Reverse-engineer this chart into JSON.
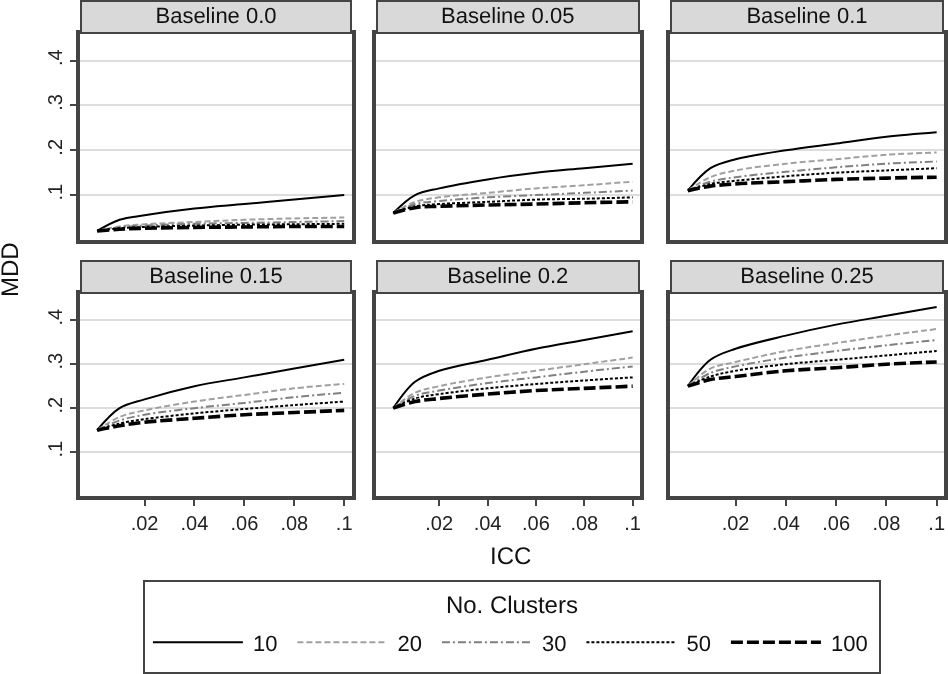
{
  "chart_data": [
    {
      "type": "line",
      "title": "Baseline 0.0",
      "ylabel": "MDD",
      "legend": "bottom",
      "legend_title": "No. Clusters",
      "grid": "y",
      "tick_labels": "y",
      "marker": "none",
      "x": [
        0.001,
        0.01,
        0.02,
        0.04,
        0.06,
        0.08,
        0.1
      ],
      "xlim": [
        -0.006,
        0.103
      ],
      "ylim": [
        0,
        0.46
      ],
      "yticks": [
        {
          "value": 0.1,
          "label": ".1"
        },
        {
          "value": 0.2,
          "label": ".2"
        },
        {
          "value": 0.3,
          "label": ".3"
        },
        {
          "value": 0.4,
          "label": ".4"
        }
      ],
      "series": [
        {
          "name": "10",
          "color": "#000000",
          "line_style": "solid",
          "values": [
            0.02,
            0.045,
            0.055,
            0.07,
            0.08,
            0.09,
            0.1
          ]
        },
        {
          "name": "20",
          "color": "#a0a0a0",
          "line_style": "dashed",
          "values": [
            0.02,
            0.03,
            0.035,
            0.04,
            0.045,
            0.048,
            0.05
          ]
        },
        {
          "name": "30",
          "color": "#808080",
          "line_style": "dashdot",
          "values": [
            0.02,
            0.028,
            0.032,
            0.036,
            0.038,
            0.04,
            0.042
          ]
        },
        {
          "name": "50",
          "color": "#000000",
          "line_style": "dotted",
          "values": [
            0.02,
            0.026,
            0.029,
            0.032,
            0.034,
            0.035,
            0.036
          ]
        },
        {
          "name": "100",
          "color": "#000000",
          "line_style": "longdash",
          "values": [
            0.02,
            0.024,
            0.026,
            0.028,
            0.029,
            0.03,
            0.03
          ]
        }
      ]
    },
    {
      "type": "line",
      "title": "Baseline 0.05",
      "grid": "y",
      "tick_labels": false,
      "marker": "none",
      "x": [
        0.001,
        0.01,
        0.02,
        0.04,
        0.06,
        0.08,
        0.1
      ],
      "xlim": [
        -0.006,
        0.103
      ],
      "ylim": [
        0,
        0.46
      ],
      "yticks": [
        0.1,
        0.2,
        0.3,
        0.4
      ],
      "series": [
        {
          "name": "10",
          "color": "#000000",
          "line_style": "solid",
          "values": [
            0.06,
            0.1,
            0.115,
            0.135,
            0.15,
            0.16,
            0.17
          ]
        },
        {
          "name": "20",
          "color": "#a0a0a0",
          "line_style": "dashed",
          "values": [
            0.06,
            0.085,
            0.095,
            0.105,
            0.115,
            0.122,
            0.13
          ]
        },
        {
          "name": "30",
          "color": "#808080",
          "line_style": "dashdot",
          "values": [
            0.06,
            0.08,
            0.087,
            0.095,
            0.1,
            0.105,
            0.11
          ]
        },
        {
          "name": "50",
          "color": "#000000",
          "line_style": "dotted",
          "values": [
            0.06,
            0.075,
            0.08,
            0.085,
            0.09,
            0.092,
            0.095
          ]
        },
        {
          "name": "100",
          "color": "#000000",
          "line_style": "longdash",
          "values": [
            0.06,
            0.072,
            0.075,
            0.078,
            0.08,
            0.083,
            0.085
          ]
        }
      ]
    },
    {
      "type": "line",
      "title": "Baseline 0.1",
      "grid": "y",
      "tick_labels": false,
      "marker": "none",
      "x": [
        0.001,
        0.01,
        0.02,
        0.04,
        0.06,
        0.08,
        0.1
      ],
      "xlim": [
        -0.006,
        0.103
      ],
      "ylim": [
        0,
        0.46
      ],
      "yticks": [
        0.1,
        0.2,
        0.3,
        0.4
      ],
      "series": [
        {
          "name": "10",
          "color": "#000000",
          "line_style": "solid",
          "values": [
            0.11,
            0.16,
            0.18,
            0.2,
            0.215,
            0.23,
            0.24
          ]
        },
        {
          "name": "20",
          "color": "#a0a0a0",
          "line_style": "dashed",
          "values": [
            0.11,
            0.14,
            0.155,
            0.17,
            0.18,
            0.19,
            0.195
          ]
        },
        {
          "name": "30",
          "color": "#808080",
          "line_style": "dashdot",
          "values": [
            0.11,
            0.13,
            0.14,
            0.152,
            0.162,
            0.17,
            0.175
          ]
        },
        {
          "name": "50",
          "color": "#000000",
          "line_style": "dotted",
          "values": [
            0.11,
            0.125,
            0.132,
            0.142,
            0.15,
            0.155,
            0.16
          ]
        },
        {
          "name": "100",
          "color": "#000000",
          "line_style": "longdash",
          "values": [
            0.11,
            0.12,
            0.125,
            0.13,
            0.135,
            0.138,
            0.14
          ]
        }
      ]
    },
    {
      "type": "line",
      "title": "Baseline 0.15",
      "grid": "y",
      "marker": "none",
      "x": [
        0.001,
        0.01,
        0.02,
        0.04,
        0.06,
        0.08,
        0.1
      ],
      "xlim": [
        -0.006,
        0.103
      ],
      "xticks": [
        {
          "value": 0.02,
          "label": ".02"
        },
        {
          "value": 0.04,
          "label": ".04"
        },
        {
          "value": 0.06,
          "label": ".06"
        },
        {
          "value": 0.08,
          "label": ".08"
        },
        {
          "value": 0.1,
          "label": ".1"
        }
      ],
      "ylim": [
        0,
        0.46
      ],
      "yticks": [
        {
          "value": 0.1,
          "label": ".1"
        },
        {
          "value": 0.2,
          "label": ".2"
        },
        {
          "value": 0.3,
          "label": ".3"
        },
        {
          "value": 0.4,
          "label": ".4"
        }
      ],
      "series": [
        {
          "name": "10",
          "color": "#000000",
          "line_style": "solid",
          "values": [
            0.15,
            0.2,
            0.22,
            0.25,
            0.27,
            0.29,
            0.31
          ]
        },
        {
          "name": "20",
          "color": "#a0a0a0",
          "line_style": "dashed",
          "values": [
            0.15,
            0.18,
            0.195,
            0.215,
            0.23,
            0.245,
            0.255
          ]
        },
        {
          "name": "30",
          "color": "#808080",
          "line_style": "dashdot",
          "values": [
            0.15,
            0.172,
            0.185,
            0.2,
            0.212,
            0.225,
            0.235
          ]
        },
        {
          "name": "50",
          "color": "#000000",
          "line_style": "dotted",
          "values": [
            0.15,
            0.165,
            0.175,
            0.188,
            0.198,
            0.207,
            0.215
          ]
        },
        {
          "name": "100",
          "color": "#000000",
          "line_style": "longdash",
          "values": [
            0.15,
            0.16,
            0.168,
            0.177,
            0.185,
            0.19,
            0.195
          ]
        }
      ]
    },
    {
      "type": "line",
      "title": "Baseline 0.2",
      "xlabel": "ICC",
      "grid": "y",
      "tick_labels": "x",
      "marker": "none",
      "x": [
        0.001,
        0.01,
        0.02,
        0.04,
        0.06,
        0.08,
        0.1
      ],
      "xlim": [
        -0.006,
        0.103
      ],
      "xticks": [
        {
          "value": 0.02,
          "label": ".02"
        },
        {
          "value": 0.04,
          "label": ".04"
        },
        {
          "value": 0.06,
          "label": ".06"
        },
        {
          "value": 0.08,
          "label": ".08"
        },
        {
          "value": 0.1,
          "label": ".1"
        }
      ],
      "ylim": [
        0,
        0.46
      ],
      "yticks": [
        0.1,
        0.2,
        0.3,
        0.4
      ],
      "series": [
        {
          "name": "10",
          "color": "#000000",
          "line_style": "solid",
          "values": [
            0.2,
            0.26,
            0.285,
            0.31,
            0.335,
            0.355,
            0.375
          ]
        },
        {
          "name": "20",
          "color": "#a0a0a0",
          "line_style": "dashed",
          "values": [
            0.2,
            0.235,
            0.25,
            0.27,
            0.285,
            0.3,
            0.315
          ]
        },
        {
          "name": "30",
          "color": "#808080",
          "line_style": "dashdot",
          "values": [
            0.2,
            0.228,
            0.24,
            0.257,
            0.27,
            0.283,
            0.295
          ]
        },
        {
          "name": "50",
          "color": "#000000",
          "line_style": "dotted",
          "values": [
            0.2,
            0.222,
            0.232,
            0.245,
            0.255,
            0.263,
            0.27
          ]
        },
        {
          "name": "100",
          "color": "#000000",
          "line_style": "longdash",
          "values": [
            0.2,
            0.215,
            0.222,
            0.232,
            0.24,
            0.245,
            0.25
          ]
        }
      ]
    },
    {
      "type": "line",
      "title": "Baseline 0.25",
      "grid": "y",
      "tick_labels": "x",
      "marker": "none",
      "x": [
        0.001,
        0.01,
        0.02,
        0.04,
        0.06,
        0.08,
        0.1
      ],
      "xlim": [
        -0.006,
        0.103
      ],
      "xticks": [
        {
          "value": 0.02,
          "label": ".02"
        },
        {
          "value": 0.04,
          "label": ".04"
        },
        {
          "value": 0.06,
          "label": ".06"
        },
        {
          "value": 0.08,
          "label": ".08"
        },
        {
          "value": 0.1,
          "label": ".1"
        }
      ],
      "ylim": [
        0,
        0.46
      ],
      "yticks": [
        0.1,
        0.2,
        0.3,
        0.4
      ],
      "series": [
        {
          "name": "10",
          "color": "#000000",
          "line_style": "solid",
          "values": [
            0.25,
            0.31,
            0.335,
            0.365,
            0.39,
            0.41,
            0.43
          ]
        },
        {
          "name": "20",
          "color": "#a0a0a0",
          "line_style": "dashed",
          "values": [
            0.25,
            0.29,
            0.305,
            0.33,
            0.348,
            0.365,
            0.38
          ]
        },
        {
          "name": "30",
          "color": "#808080",
          "line_style": "dashdot",
          "values": [
            0.25,
            0.28,
            0.295,
            0.315,
            0.33,
            0.343,
            0.355
          ]
        },
        {
          "name": "50",
          "color": "#000000",
          "line_style": "dotted",
          "values": [
            0.25,
            0.272,
            0.285,
            0.3,
            0.31,
            0.32,
            0.33
          ]
        },
        {
          "name": "100",
          "color": "#000000",
          "line_style": "longdash",
          "values": [
            0.25,
            0.265,
            0.272,
            0.285,
            0.292,
            0.3,
            0.305
          ]
        }
      ]
    }
  ]
}
